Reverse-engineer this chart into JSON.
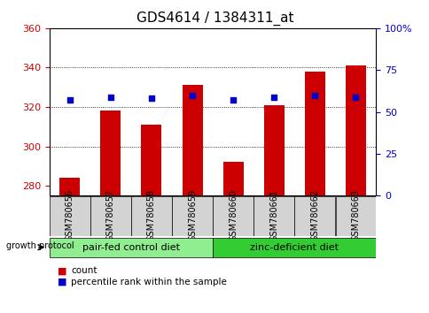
{
  "title": "GDS4614 / 1384311_at",
  "samples": [
    "GSM780656",
    "GSM780657",
    "GSM780658",
    "GSM780659",
    "GSM780660",
    "GSM780661",
    "GSM780662",
    "GSM780663"
  ],
  "counts": [
    284,
    318,
    311,
    331,
    292,
    321,
    338,
    341
  ],
  "percentiles": [
    57,
    59,
    58,
    60,
    57,
    59,
    60,
    59
  ],
  "ylim_left": [
    275,
    360
  ],
  "ylim_right": [
    0,
    100
  ],
  "yticks_left": [
    280,
    300,
    320,
    340,
    360
  ],
  "yticks_right": [
    0,
    25,
    50,
    75,
    100
  ],
  "yticklabels_right": [
    "0",
    "25",
    "50",
    "75",
    "100%"
  ],
  "bar_color": "#cc0000",
  "dot_color": "#0000cc",
  "bar_bottom": 275,
  "group1_label": "pair-fed control diet",
  "group2_label": "zinc-deficient diet",
  "group1_indices": [
    0,
    1,
    2,
    3
  ],
  "group2_indices": [
    4,
    5,
    6,
    7
  ],
  "group_color1": "#90ee90",
  "group_color2": "#33cc33",
  "protocol_label": "growth protocol",
  "legend_count_label": "count",
  "legend_pct_label": "percentile rank within the sample",
  "left_tick_color": "#cc0000",
  "right_tick_color": "#0000cc",
  "title_fontsize": 11,
  "tick_fontsize": 8,
  "label_fontsize": 7,
  "group_fontsize": 8,
  "legend_fontsize": 7.5
}
